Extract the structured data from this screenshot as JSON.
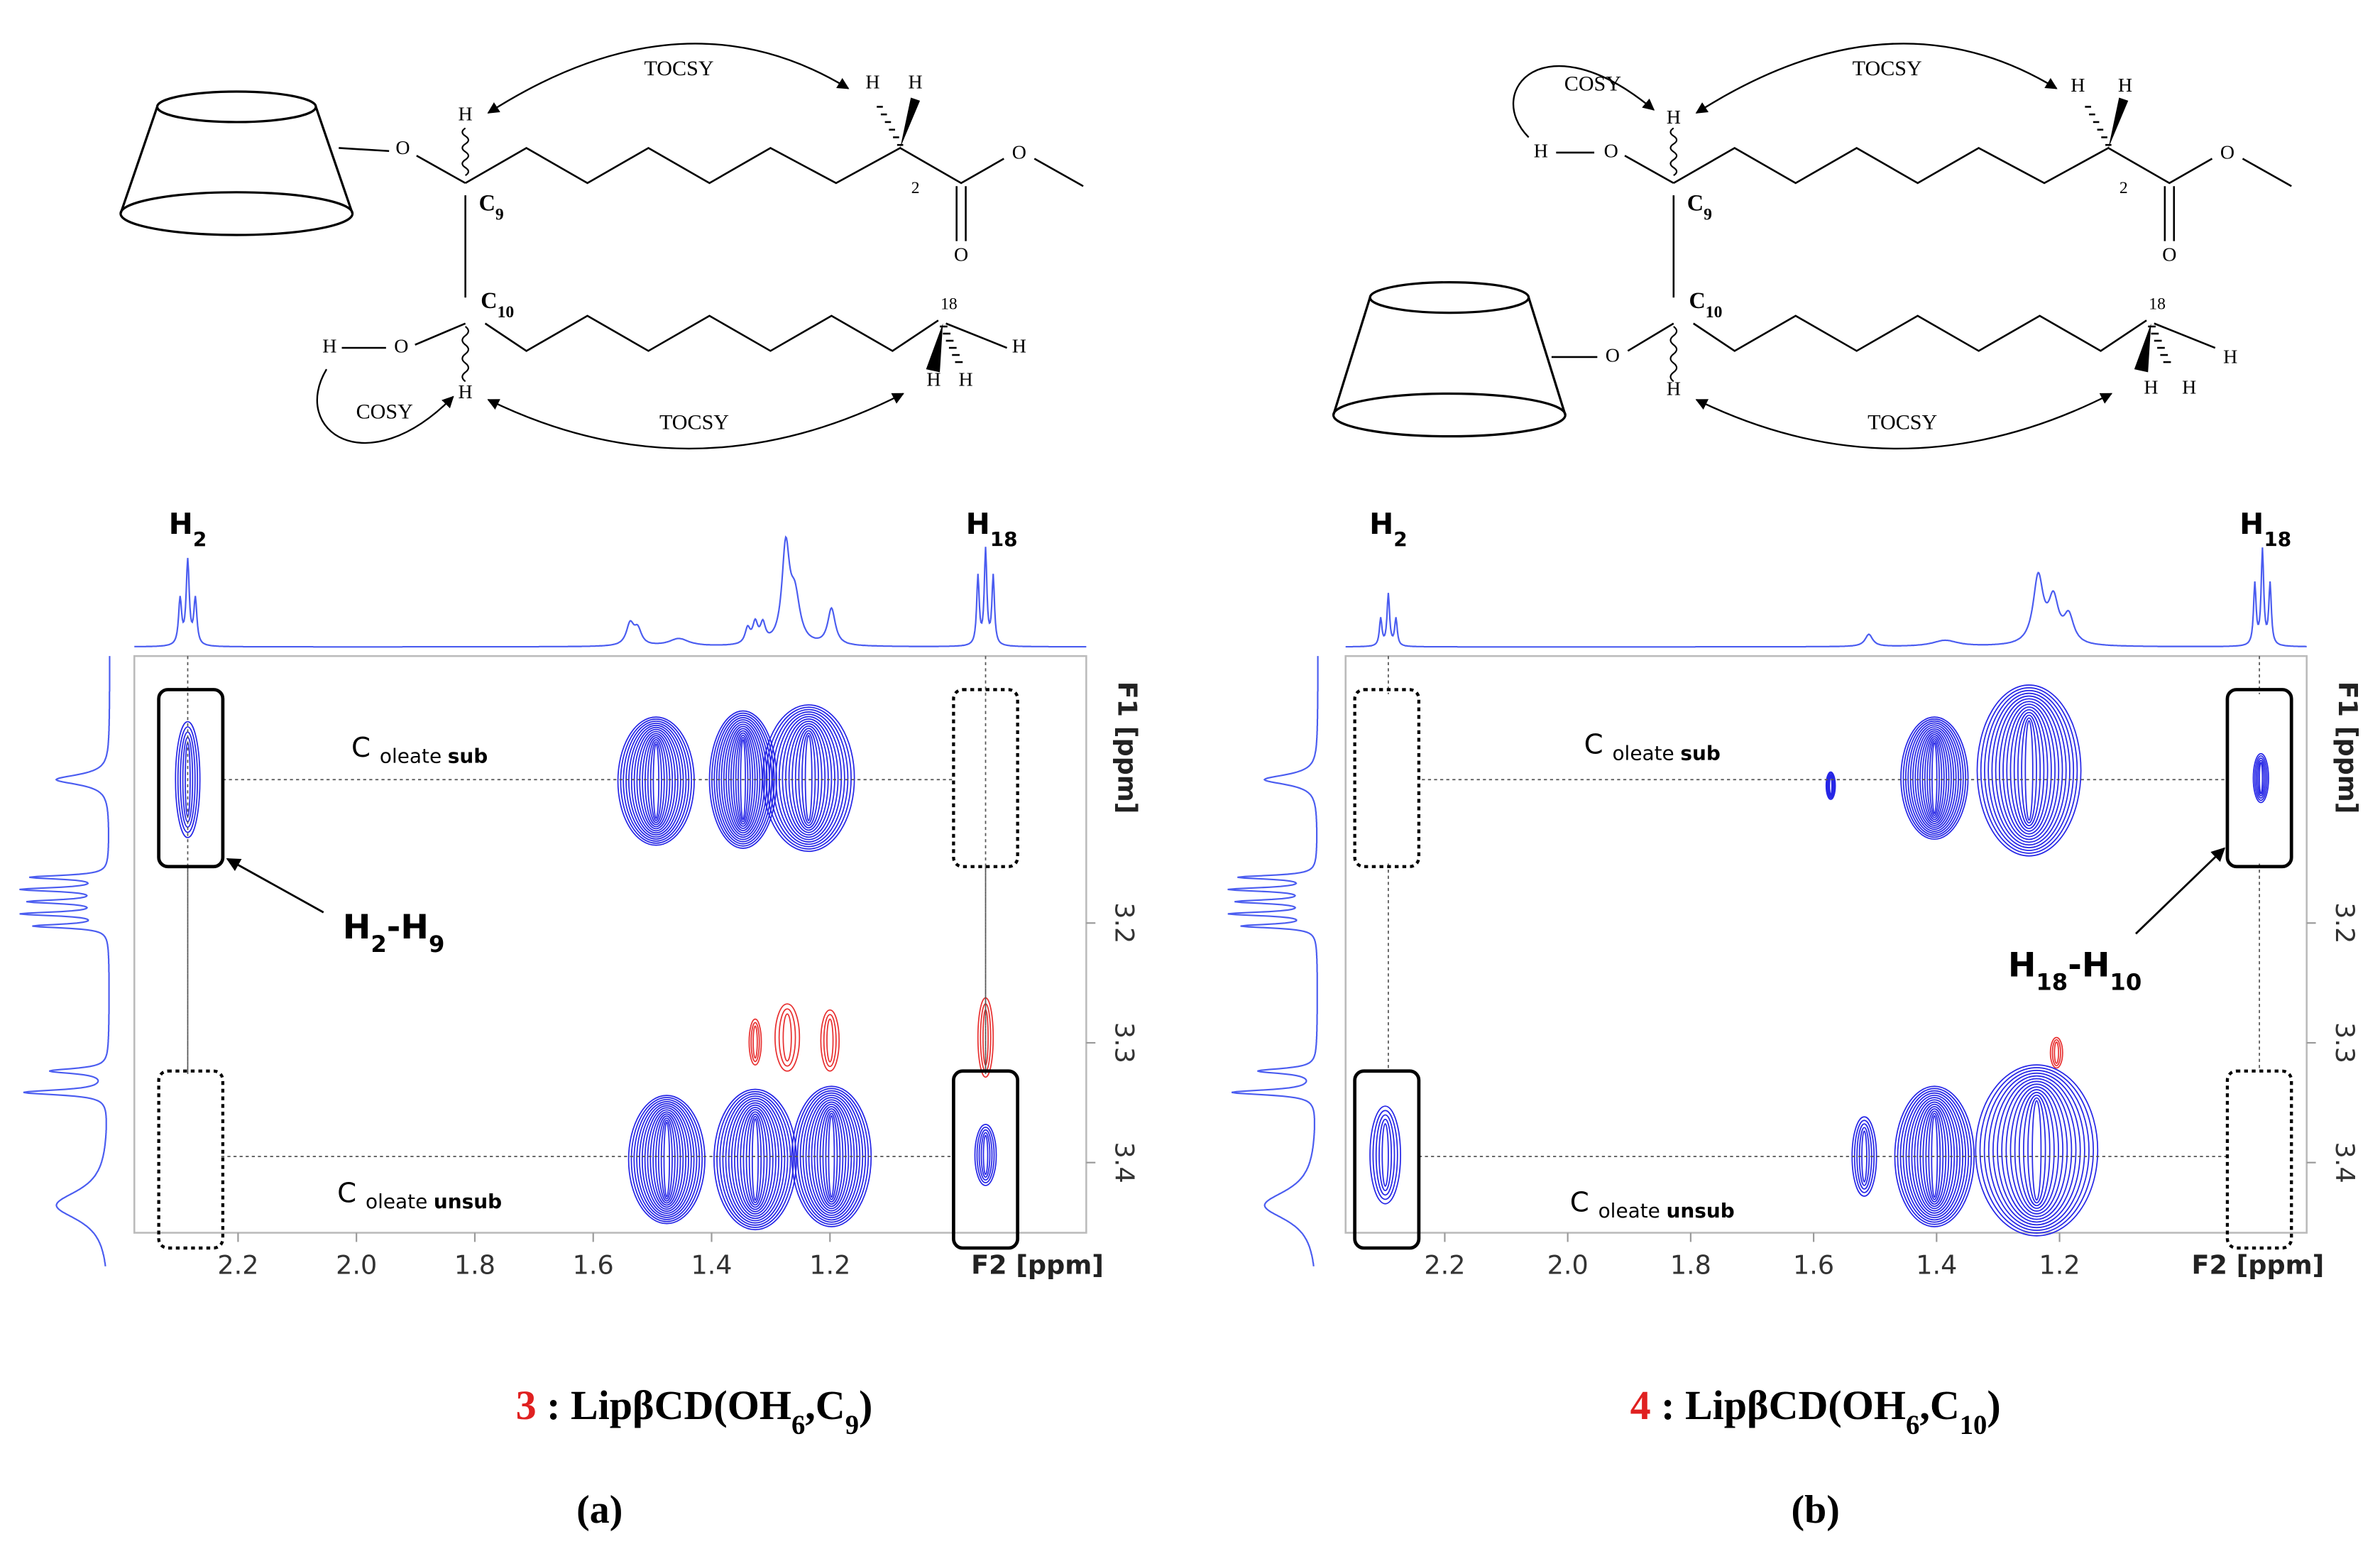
{
  "panels": [
    {
      "structure": {
        "experiments": [
          "TOCSY",
          "TOCSY",
          "COSY"
        ],
        "c9": [
          "C",
          "9"
        ],
        "c10": [
          "C",
          "10"
        ],
        "locants": [
          "2",
          "18"
        ],
        "hydrogens": [
          "H",
          "H",
          "H",
          "H",
          "H",
          "H",
          "H",
          "H"
        ],
        "oxygens": [
          "O",
          "O",
          "O",
          "O"
        ]
      },
      "spectrum": {
        "peaks": [
          [
            "H",
            "2"
          ],
          [
            "H",
            "18"
          ]
        ],
        "rows": [
          [
            "C",
            "oleate",
            "sub"
          ],
          [
            "C",
            "oleate",
            "unsub"
          ]
        ],
        "annotation": [
          "H",
          "2",
          "-H",
          "9"
        ],
        "x_axis": {
          "title": "F2 [ppm]",
          "ticks": [
            2.2,
            {
              "value": 2,
              "label": "2.0"
            },
            1.8,
            1.6,
            1.4,
            1.2
          ]
        },
        "y_axis": {
          "title": "F1 [ppm]",
          "ticks": [
            3.2,
            3.3,
            3.4
          ]
        }
      },
      "caption": {
        "number": "3",
        "text": [
          " : LipβCD(OH",
          "6",
          ",C",
          "9",
          ")"
        ]
      },
      "label": "(a)"
    },
    {
      "structure": {
        "experiments": [
          "TOCSY",
          "TOCSY",
          "COSY"
        ],
        "c9": [
          "C",
          "9"
        ],
        "c10": [
          "C",
          "10"
        ],
        "locants": [
          "2",
          "18"
        ],
        "hydrogens": [
          "H",
          "H",
          "H",
          "H",
          "H",
          "H",
          "H",
          "H"
        ],
        "oxygens": [
          "O",
          "O",
          "O",
          "O"
        ]
      },
      "spectrum": {
        "peaks": [
          [
            "H",
            "2"
          ],
          [
            "H",
            "18"
          ]
        ],
        "rows": [
          [
            "C",
            "oleate",
            "sub"
          ],
          [
            "C",
            "oleate",
            "unsub"
          ]
        ],
        "annotation": [
          "H",
          "18",
          "-H",
          "10"
        ],
        "x_axis": {
          "title": "F2 [ppm]",
          "ticks": [
            2.2,
            {
              "value": 2,
              "label": "2.0"
            },
            1.8,
            1.6,
            1.4,
            1.2
          ]
        },
        "y_axis": {
          "title": "F1 [ppm]",
          "ticks": [
            3.2,
            3.3,
            3.4
          ]
        }
      },
      "caption": {
        "number": "4",
        "text": [
          " : LipβCD(OH",
          "6",
          ",C",
          "10",
          ")"
        ]
      },
      "label": "(b)"
    }
  ]
}
